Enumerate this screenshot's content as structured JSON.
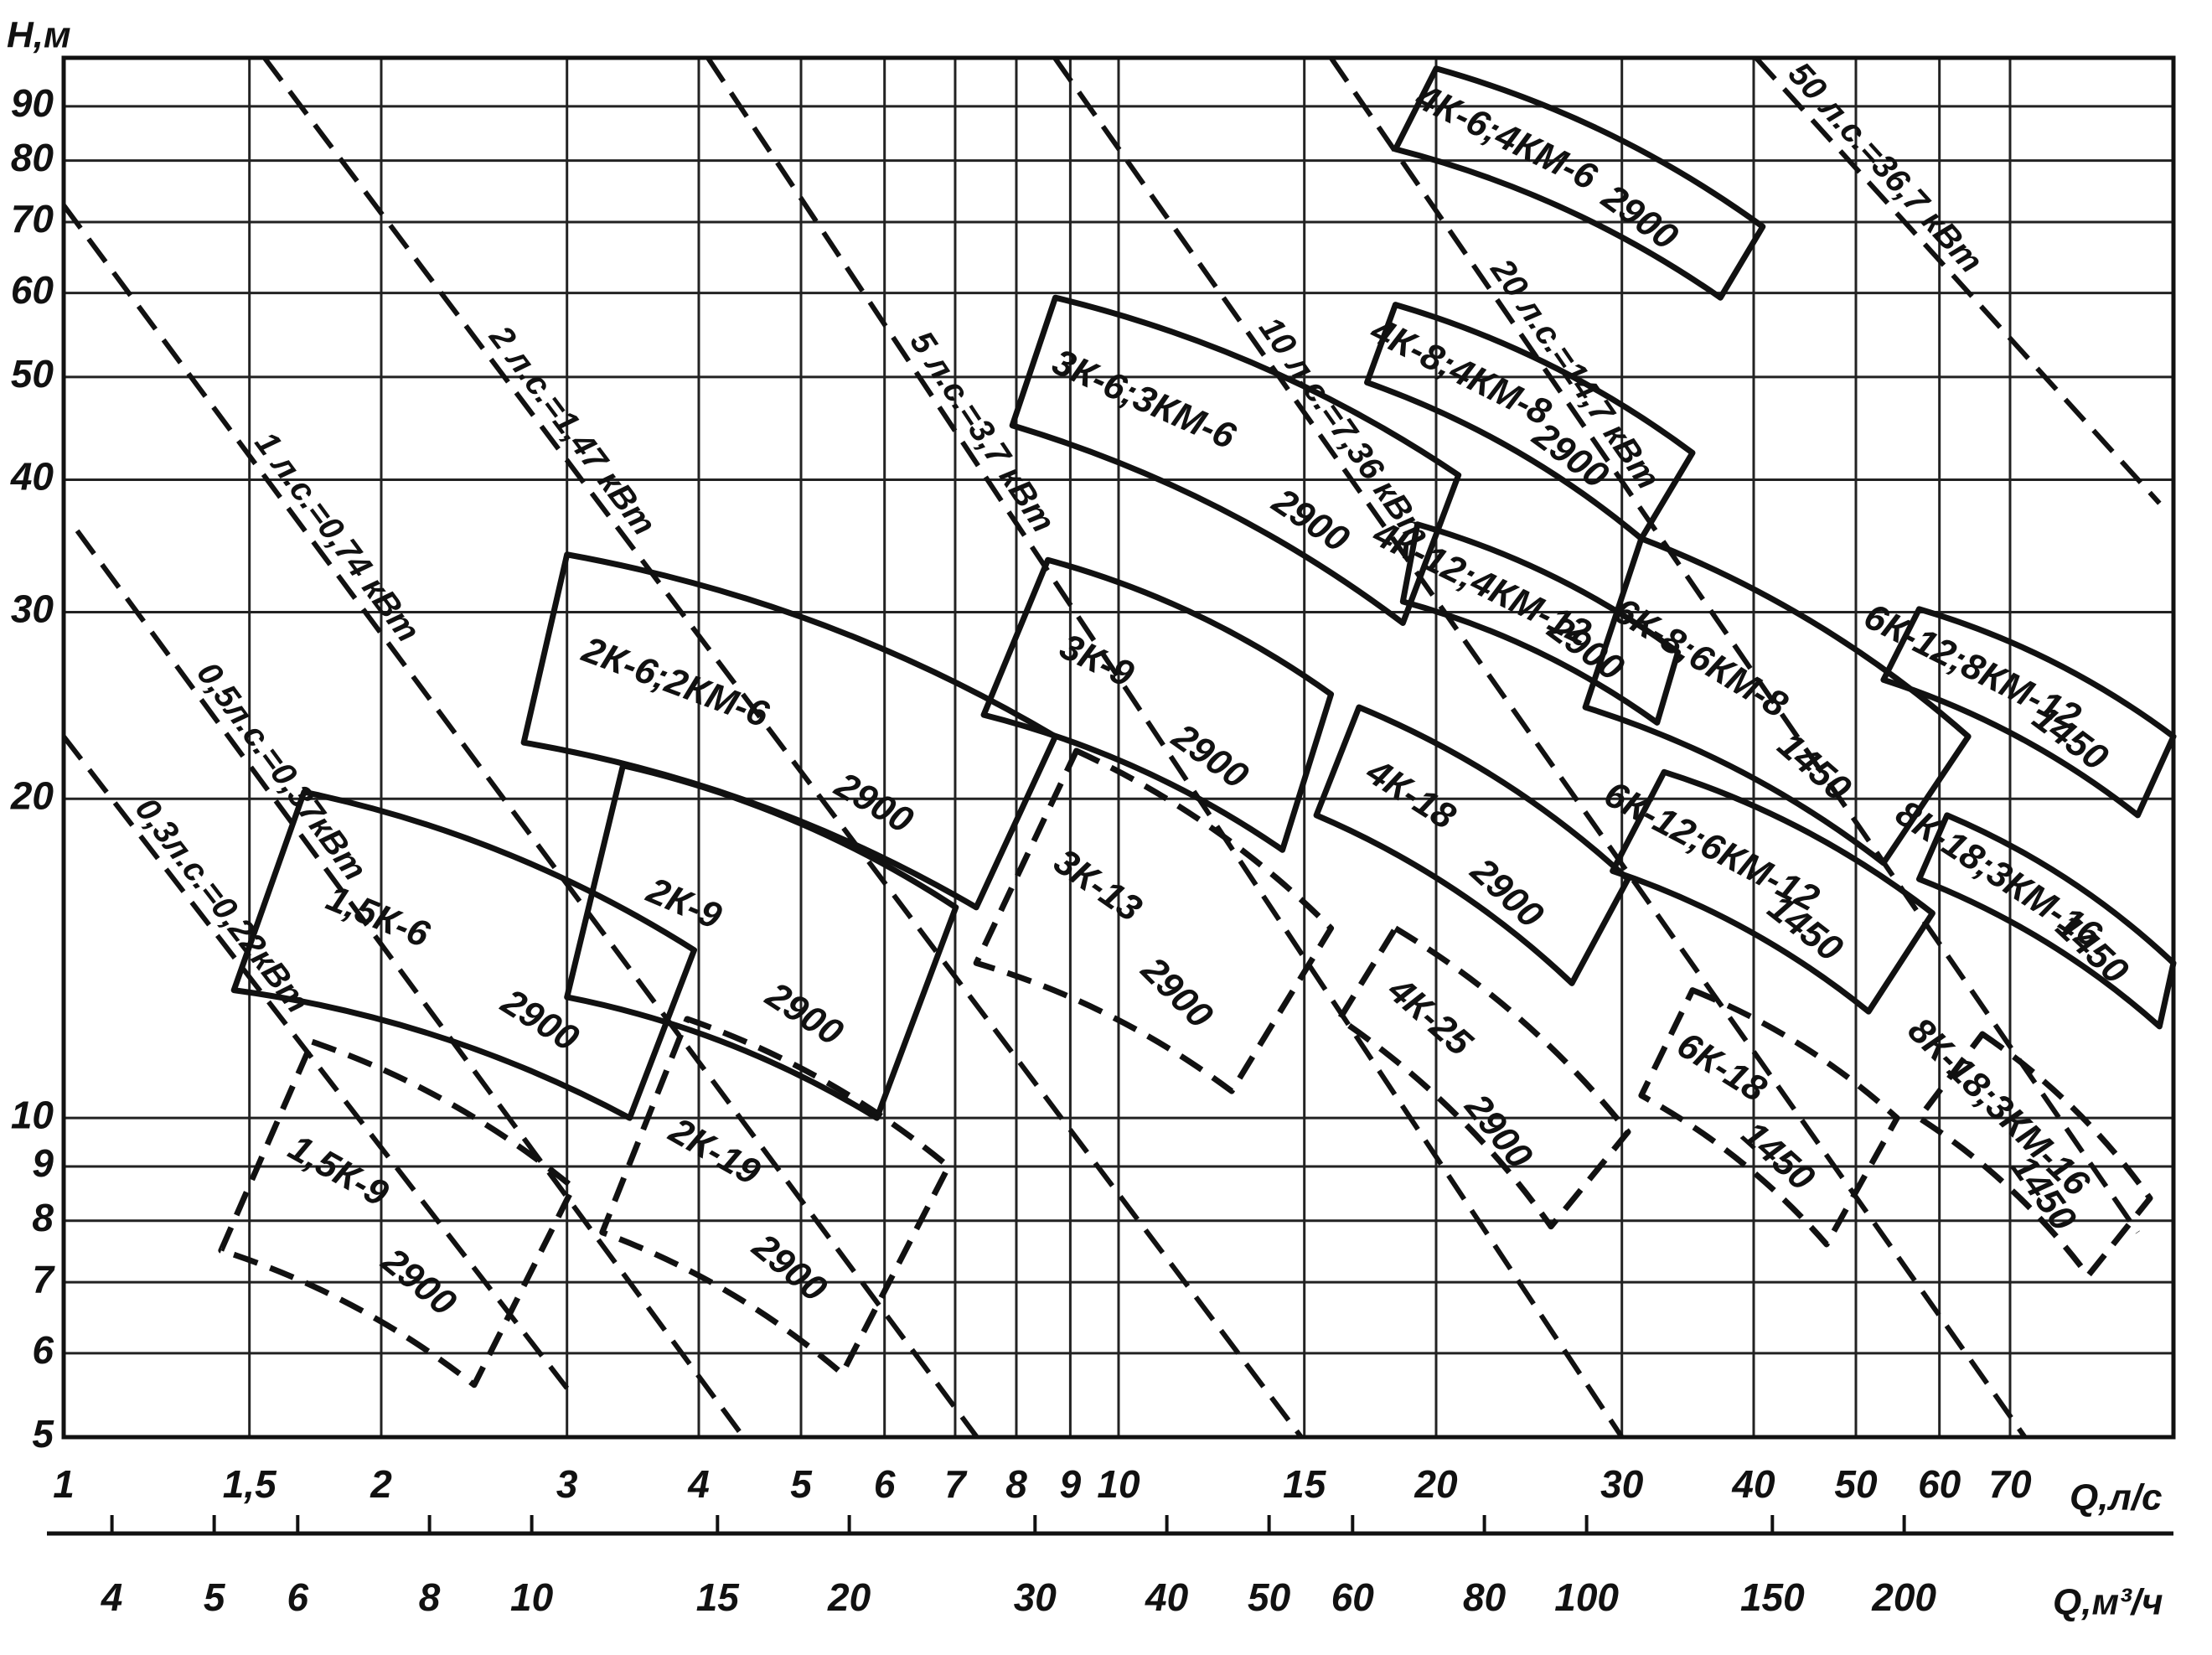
{
  "chart_data": {
    "type": "region",
    "x_label": "Q,л/с",
    "x2_label": "Q,м³/ч",
    "y_label": "H,м",
    "log_x": true,
    "log_y": true,
    "grid": true,
    "xlim": [
      1,
      100
    ],
    "xticks": [
      1,
      {
        "value": 1.5,
        "label": "1,5"
      },
      2,
      3,
      4,
      5,
      6,
      7,
      8,
      9,
      10,
      15,
      20,
      30,
      40,
      50,
      60,
      70
    ],
    "x2lim": [
      3.6,
      360
    ],
    "x2ticks": [
      4,
      5,
      6,
      8,
      10,
      15,
      20,
      30,
      40,
      50,
      60,
      80,
      100,
      150,
      200
    ],
    "ylim": [
      5,
      100
    ],
    "yticks": [
      5,
      6,
      7,
      8,
      9,
      10,
      20,
      30,
      40,
      50,
      60,
      70,
      80,
      90
    ],
    "power_lines": [
      {
        "name": "0,3л.с.=0,22кВт",
        "x": [
          1,
          3.0
        ],
        "values": [
          22.9,
          5.56
        ]
      },
      {
        "name": "0,5л.с.=0,37кВт",
        "x": [
          1.03,
          4.41
        ],
        "values": [
          35.8,
          5
        ]
      },
      {
        "name": "1 л.с.=0,74 кВт",
        "x": [
          1,
          7.34
        ],
        "values": [
          72.6,
          5
        ]
      },
      {
        "name": "2 л.с.=1,47 кВт",
        "x": [
          1.55,
          14.9
        ],
        "values": [
          100,
          5
        ]
      },
      {
        "name": "5 л.с.=3,7 кВт",
        "x": [
          4.08,
          30
        ],
        "values": [
          100,
          5
        ]
      },
      {
        "name": "10 л.с.=7,36 кВт",
        "x": [
          8.7,
          72.3
        ],
        "values": [
          100,
          5
        ]
      },
      {
        "name": "20 л.с.=14,7 кВт",
        "x": [
          15.9,
          92.5
        ],
        "values": [
          100,
          7.8
        ]
      },
      {
        "name": "50 л.с.=36,7 кВт",
        "x": [
          40.2,
          97
        ],
        "values": [
          100,
          38
        ]
      }
    ],
    "series": [
      {
        "name": "1,5К-6",
        "speed": "2900",
        "line": "solid",
        "x": [
          1.69,
          3.96,
          3.44,
          1.45
        ],
        "values": [
          20.3,
          14.4,
          10,
          13.2
        ]
      },
      {
        "name": "1,5К-9",
        "speed": "2900",
        "line": "dashed",
        "x": [
          1.72,
          3.04,
          2.45,
          1.41
        ],
        "values": [
          11.8,
          8.6,
          5.6,
          7.5
        ]
      },
      {
        "name": "2К-6;2КМ-6",
        "speed": "2900",
        "line": "solid",
        "x": [
          3.0,
          8.71,
          7.33,
          2.73
        ],
        "values": [
          34,
          22.9,
          15.8,
          22.6
        ]
      },
      {
        "name": "2К-9",
        "speed": "2900",
        "line": "solid",
        "x": [
          3.39,
          7.01,
          5.9,
          3.0
        ],
        "values": [
          21.5,
          15.8,
          10,
          13.0
        ]
      },
      {
        "name": "2К-19",
        "speed": "2900",
        "line": "dashed",
        "x": [
          3.9,
          6.9,
          5.47,
          3.24
        ],
        "values": [
          12.4,
          9.0,
          5.74,
          7.8
        ]
      },
      {
        "name": "3К-6;3КМ-6",
        "speed": "2900",
        "line": "solid",
        "x": [
          8.71,
          21.0,
          18.6,
          7.93
        ],
        "values": [
          59.4,
          40.4,
          29.3,
          45
        ]
      },
      {
        "name": "3К-9",
        "speed": "2900",
        "line": "solid",
        "x": [
          8.57,
          15.9,
          14.3,
          7.45
        ],
        "values": [
          33.6,
          25.1,
          17.9,
          24.0
        ]
      },
      {
        "name": "3К-13",
        "speed": "2900",
        "line": "dashed",
        "x": [
          9.12,
          15.9,
          12.8,
          7.33
        ],
        "values": [
          22.2,
          15.1,
          10.6,
          14.0
        ]
      },
      {
        "name": "4К-6;4КМ-6",
        "speed": "2900",
        "line": "solid",
        "x": [
          20.0,
          40.8,
          37.2,
          18.3
        ],
        "values": [
          97.7,
          69.3,
          59.4,
          82.0
        ]
      },
      {
        "name": "4К-8;4КМ-8",
        "speed": "2900",
        "line": "solid",
        "x": [
          18.3,
          35.0,
          31.3,
          17.2
        ],
        "values": [
          58.5,
          42.4,
          35.2,
          49.4
        ]
      },
      {
        "name": "4К-12;4КМ-12",
        "speed": "2900",
        "line": "solid",
        "x": [
          19.2,
          33.9,
          32.4,
          18.6
        ],
        "values": [
          36.3,
          27.5,
          23.6,
          30.7
        ]
      },
      {
        "name": "4К-18",
        "speed": "2900",
        "line": "solid",
        "x": [
          16.9,
          30.4,
          26.9,
          15.4
        ],
        "values": [
          24.4,
          16.8,
          13.4,
          19.3
        ]
      },
      {
        "name": "4К-25",
        "speed": "2900",
        "line": "dashed",
        "x": [
          18.3,
          30.4,
          25.7,
          16.2
        ],
        "values": [
          15.1,
          9.7,
          7.9,
          12.4
        ]
      },
      {
        "name": "6К-8;6КМ-8",
        "speed": "1450",
        "line": "solid",
        "x": [
          31.3,
          63.9,
          53.1,
          27.7
        ],
        "values": [
          35.2,
          22.9,
          17.4,
          24.4
        ]
      },
      {
        "name": "6К-12;6КМ-12",
        "speed": "1450",
        "line": "solid",
        "x": [
          32.9,
          59.1,
          51.4,
          29.4
        ],
        "values": [
          21.2,
          15.6,
          12.6,
          17.1
        ]
      },
      {
        "name": "6К-18",
        "speed": "1450",
        "line": "dashed",
        "x": [
          35.0,
          54.7,
          46.9,
          31.3
        ],
        "values": [
          13.2,
          10,
          7.6,
          10.5
        ]
      },
      {
        "name": "6К-12;8КМ-12",
        "speed": "1450",
        "line": "solid",
        "x": [
          57.4,
          100,
          92.5,
          53.1
        ],
        "values": [
          30.2,
          22.9,
          19.3,
          25.9
        ]
      },
      {
        "name": "8К-18;3КМ-16",
        "speed": "1450",
        "line": "solid",
        "x": [
          61.0,
          100,
          97,
          57.4
        ],
        "values": [
          19.3,
          14.0,
          12.2,
          16.8
        ]
      },
      {
        "name": "8К-18;3КМ-16",
        "speed": "1450",
        "line": "dashed",
        "x": [
          65.9,
          95,
          83.0,
          57.4
        ],
        "values": [
          12.0,
          8.4,
          7.1,
          10
        ]
      }
    ]
  }
}
